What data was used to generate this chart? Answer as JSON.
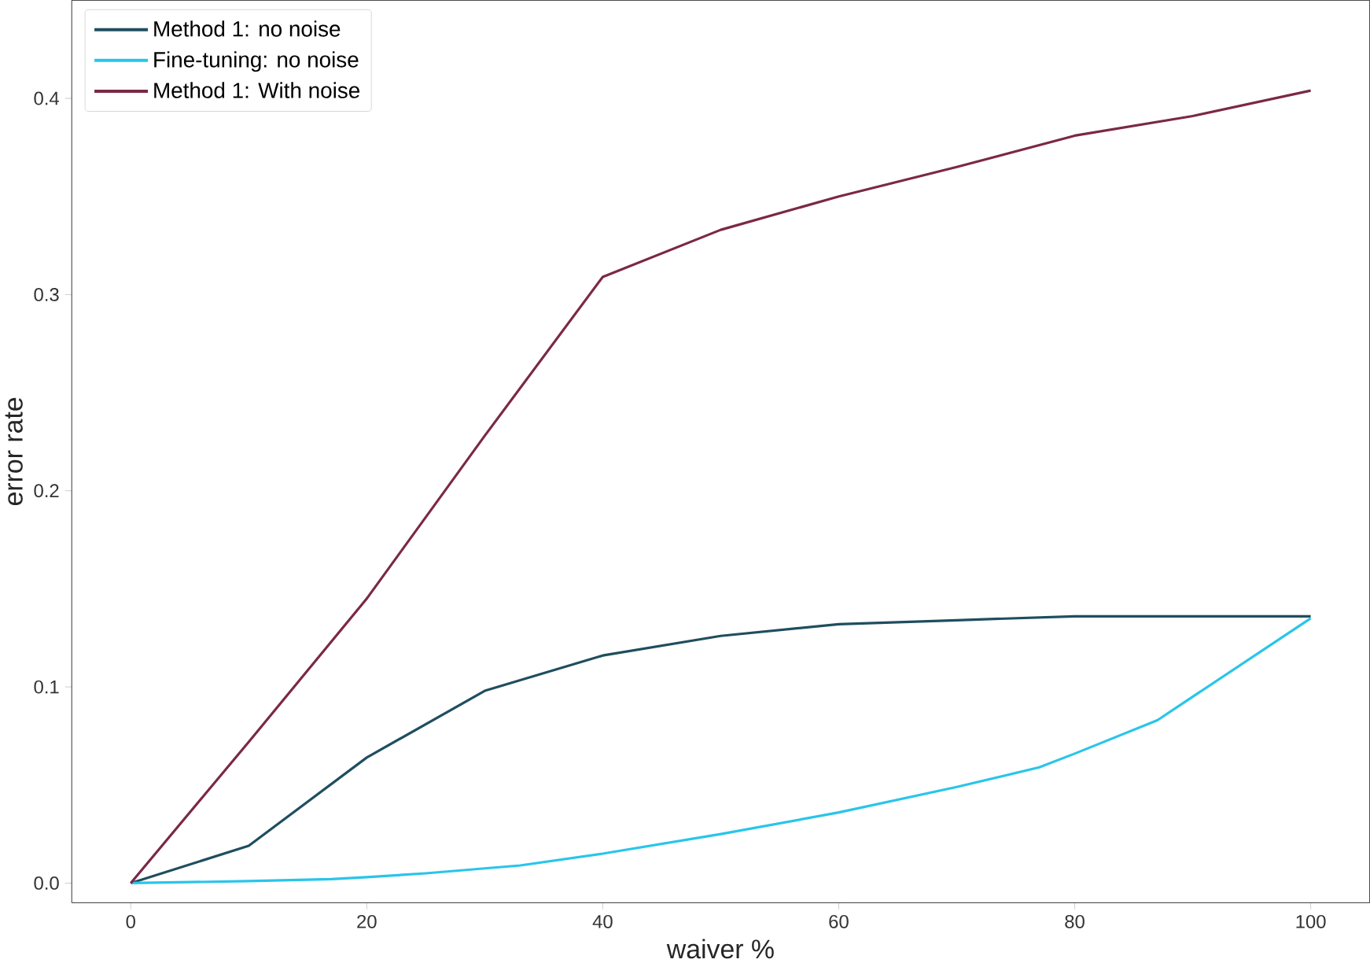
{
  "chart_data": {
    "type": "line",
    "xlabel": "waiver %",
    "ylabel": "error rate",
    "xlim": [
      -5,
      105
    ],
    "ylim": [
      -0.01,
      0.45
    ],
    "xticks": [
      0,
      20,
      40,
      60,
      80,
      100
    ],
    "yticks": [
      {
        "value": 0,
        "label": "0.0"
      },
      0.1,
      0.2,
      0.3,
      0.4
    ],
    "grid": false,
    "legend": "top left",
    "marker": "none",
    "line_style": "solid",
    "series": [
      {
        "name": "Method 1: no noise",
        "color": "#1f4e5f",
        "x": [
          0,
          10,
          20,
          30,
          40,
          50,
          60,
          70,
          80,
          90,
          100
        ],
        "values": [
          0,
          0.019,
          0.064,
          0.098,
          0.116,
          0.126,
          0.132,
          0.134,
          0.136,
          0.136,
          0.136
        ]
      },
      {
        "name": "Fine-tuning: no noise",
        "color": "#29c5ea",
        "x": [
          0,
          10,
          17,
          20,
          25,
          33,
          40,
          50,
          60,
          70,
          77,
          80,
          87,
          100
        ],
        "values": [
          0,
          0.001,
          0.002,
          0.003,
          0.005,
          0.009,
          0.015,
          0.025,
          0.036,
          0.049,
          0.059,
          0.066,
          0.083,
          0.135
        ]
      },
      {
        "name": "Method 1: With noise",
        "color": "#7b2846",
        "x": [
          0,
          10,
          20,
          30,
          40,
          50,
          60,
          70,
          80,
          90,
          100
        ],
        "values": [
          0,
          0.072,
          0.145,
          0.228,
          0.309,
          0.333,
          0.35,
          0.365,
          0.381,
          0.391,
          0.404
        ]
      }
    ]
  }
}
